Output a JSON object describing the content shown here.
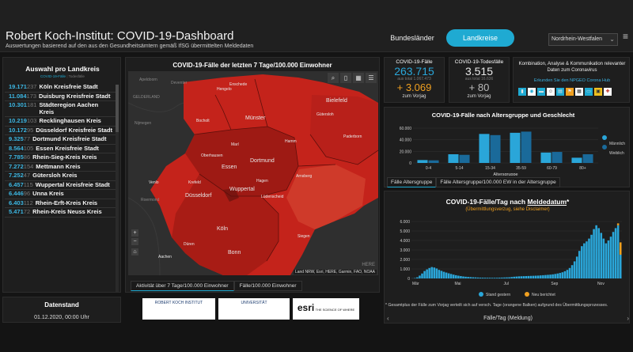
{
  "header": {
    "title": "Robert Koch-Institut: COVID-19-Dashboard",
    "subtitle": "Auswertungen basierend auf den aus den Gesundheitsämtern gemäß IfSG übermittelten Meldedaten",
    "nav_bundeslaender": "Bundesländer",
    "nav_landkreise": "Landkreise",
    "state_select": "Nordrhein-Westfalen"
  },
  "left_panel": {
    "title": "Auswahl pro Landkreis",
    "tab_active": "COVID-19-Fälle",
    "tab_inactive": "Todesfälle",
    "items": [
      {
        "num": "19.171",
        "sub": "237",
        "name": "Köln Kreisfreie Stadt"
      },
      {
        "num": "11.084",
        "sub": "173",
        "name": "Duisburg Kreisfreie Stadt"
      },
      {
        "num": "10.301",
        "sub": "181",
        "name": "Städteregion Aachen Kreis"
      },
      {
        "num": "10.219",
        "sub": "103",
        "name": "Recklinghausen Kreis"
      },
      {
        "num": "10.172",
        "sub": "95",
        "name": "Düsseldorf Kreisfreie Stadt"
      },
      {
        "num": "9.325",
        "sub": "77",
        "name": "Dortmund Kreisfreie Stadt"
      },
      {
        "num": "8.564",
        "sub": "105",
        "name": "Essen Kreisfreie Stadt"
      },
      {
        "num": "7.785",
        "sub": "86",
        "name": "Rhein-Sieg-Kreis Kreis"
      },
      {
        "num": "7.272",
        "sub": "154",
        "name": "Mettmann Kreis"
      },
      {
        "num": "7.252",
        "sub": "47",
        "name": "Gütersloh Kreis"
      },
      {
        "num": "6.457",
        "sub": "115",
        "name": "Wuppertal Kreisfreie Stadt"
      },
      {
        "num": "6.446",
        "sub": "96",
        "name": "Unna Kreis"
      },
      {
        "num": "6.403",
        "sub": "112",
        "name": "Rhein-Erft-Kreis Kreis"
      },
      {
        "num": "5.471",
        "sub": "72",
        "name": "Rhein-Kreis Neuss Kreis"
      }
    ]
  },
  "datenstand": {
    "label": "Datenstand",
    "value": "01.12.2020, 00:00 Uhr"
  },
  "map": {
    "title": "COVID-19-Fälle der letzten 7 Tage/100.000 Einwohner",
    "attribution": "Land NRW, Esri, HERE, Garmin, FAO, NOAA",
    "tab_active": "Aktivität über 7 Tage/100.000 Einwohner",
    "tab_inactive": "Fälle/100.000 Einwohner",
    "watermark": "HERE",
    "cities": [
      {
        "name": "Apeldoorn",
        "cls": "dim"
      },
      {
        "name": "Deventer",
        "cls": "dim"
      },
      {
        "name": "Enschede",
        "cls": ""
      },
      {
        "name": "Hengelo",
        "cls": ""
      },
      {
        "name": "GELDERLAND",
        "cls": "dim"
      },
      {
        "name": "Nijmegen",
        "cls": "dim"
      },
      {
        "name": "Bielefeld",
        "cls": "big"
      },
      {
        "name": "Gütersloh",
        "cls": ""
      },
      {
        "name": "Münster",
        "cls": "big"
      },
      {
        "name": "Bocholt",
        "cls": ""
      },
      {
        "name": "Paderborn",
        "cls": ""
      },
      {
        "name": "Hamm",
        "cls": ""
      },
      {
        "name": "Marl",
        "cls": ""
      },
      {
        "name": "Oberhausen",
        "cls": ""
      },
      {
        "name": "Essen",
        "cls": "big"
      },
      {
        "name": "Dortmund",
        "cls": "big"
      },
      {
        "name": "Krefeld",
        "cls": ""
      },
      {
        "name": "Hagen",
        "cls": ""
      },
      {
        "name": "Arnsberg",
        "cls": ""
      },
      {
        "name": "Venlo",
        "cls": ""
      },
      {
        "name": "Wuppertal",
        "cls": "big"
      },
      {
        "name": "Düsseldorf",
        "cls": "big"
      },
      {
        "name": "Lüdenscheid",
        "cls": ""
      },
      {
        "name": "Roermond",
        "cls": "dim"
      },
      {
        "name": "Köln",
        "cls": "big"
      },
      {
        "name": "Siegen",
        "cls": ""
      },
      {
        "name": "Düren",
        "cls": ""
      },
      {
        "name": "Bonn",
        "cls": "big"
      },
      {
        "name": "Aachen",
        "cls": ""
      }
    ]
  },
  "logos": {
    "rki": "ROBERT KOCH INSTITUT",
    "uni": "UNIVERSITÄT",
    "esri": "esri",
    "esri_tag": "THE SCIENCE OF WHERE"
  },
  "kpi_cases": {
    "label": "COVID-19-Fälle",
    "value": "263.715",
    "sub": "aus total 1.067.473",
    "delta": "+ 3.069",
    "foot": "zum Vorjag",
    "color": "#2aa6d9"
  },
  "kpi_deaths": {
    "label": "COVID-19-Todesfälle",
    "value": "3.515",
    "sub": "aus total 16.636",
    "delta": "+ 80",
    "foot": "zum Vorjag",
    "color": "#e8e8e8"
  },
  "info_box": {
    "text": "Kombination, Analyse & Kommunikation relevanter Daten zum Coronavirus",
    "link": "Erkunden Sie den NPGEO Corona Hub"
  },
  "age_chart": {
    "title": "COVID-19-Fälle nach Altersgruppe und Geschlecht",
    "tab_active": "Fälle Altersgruppe",
    "tab_inactive": "Fälle Altersgruppe/100.000 EW in der Altersgruppe",
    "legend_m": "Männlich",
    "legend_w": "Weiblich",
    "color_m": "#2aa6d9",
    "color_w": "#1a6a9a"
  },
  "epi_chart": {
    "title_prefix": "COVID-19-Fälle/Tag nach ",
    "title_link": "Meldedatum",
    "title_suffix": "*",
    "subtitle": "(Übermittlungsverzug, siehe Disclaimer)",
    "legend_blue": "Stand gestern",
    "legend_orange": "Neu berichtet",
    "color_blue": "#2aa6d9",
    "color_orange": "#f0a020"
  },
  "footnote": "* Gesamtplus der Fälle zum Vorjag verteilt sich auf versch. Tage (orangene Balken) aufgrund des Übermittlungsprozesses.",
  "bottom_nav": {
    "label": "Fälle/Tag (Meldung)"
  },
  "chart_data": [
    {
      "type": "bar",
      "title": "COVID-19-Fälle nach Altersgruppe und Geschlecht",
      "xlabel": "Altersgruppe",
      "ylabel": "",
      "categories": [
        "0-4",
        "5-14",
        "15-34",
        "35-59",
        "60-79",
        "80+"
      ],
      "series": [
        {
          "name": "Männlich",
          "values": [
            5000,
            15000,
            50000,
            52000,
            18000,
            9000
          ]
        },
        {
          "name": "Weiblich",
          "values": [
            4500,
            14000,
            48000,
            54000,
            19000,
            15000
          ]
        }
      ],
      "yticks": [
        "0",
        "20.000",
        "40.000",
        "60.000"
      ],
      "ylim": [
        0,
        60000
      ],
      "legend": "right"
    },
    {
      "type": "bar",
      "title": "COVID-19-Fälle/Tag nach Meldedatum*",
      "xticks": [
        "Mär",
        "Mai",
        "Jul",
        "Sep",
        "Nov"
      ],
      "yticks": [
        "0",
        "1.000",
        "2.000",
        "3.000",
        "4.000",
        "5.000",
        "6.000"
      ],
      "ylim": [
        0,
        6000
      ],
      "series": [
        {
          "name": "Stand gestern",
          "values": [
            10,
            40,
            120,
            300,
            520,
            780,
            950,
            1100,
            1200,
            1150,
            1050,
            900,
            800,
            700,
            620,
            540,
            470,
            400,
            340,
            290,
            250,
            210,
            180,
            160,
            140,
            120,
            110,
            95,
            85,
            80,
            75,
            70,
            70,
            65,
            65,
            70,
            80,
            90,
            100,
            110,
            120,
            150,
            180,
            200,
            220,
            230,
            240,
            250,
            260,
            270,
            280,
            290,
            300,
            320,
            340,
            360,
            380,
            400,
            430,
            470,
            520,
            580,
            650,
            760,
            900,
            1100,
            1400,
            1800,
            2300,
            2900,
            3400,
            3700,
            3900,
            4200,
            4600,
            5200,
            5600,
            5300,
            4800,
            4200,
            3700,
            4000,
            4400,
            4900,
            5300,
            5600,
            2500
          ]
        },
        {
          "name": "Neu berichtet",
          "values": [
            0,
            0,
            0,
            0,
            0,
            0,
            0,
            0,
            0,
            0,
            0,
            0,
            0,
            0,
            0,
            0,
            0,
            0,
            0,
            0,
            0,
            0,
            0,
            0,
            0,
            0,
            0,
            0,
            0,
            0,
            0,
            0,
            0,
            0,
            0,
            0,
            0,
            0,
            0,
            0,
            0,
            0,
            0,
            0,
            0,
            0,
            0,
            0,
            0,
            0,
            0,
            0,
            0,
            0,
            0,
            0,
            0,
            0,
            0,
            0,
            0,
            0,
            0,
            0,
            0,
            0,
            0,
            0,
            0,
            0,
            0,
            0,
            0,
            0,
            0,
            0,
            0,
            0,
            0,
            0,
            0,
            0,
            0,
            0,
            0,
            200,
            1300
          ]
        }
      ],
      "legend": "bottom"
    }
  ]
}
